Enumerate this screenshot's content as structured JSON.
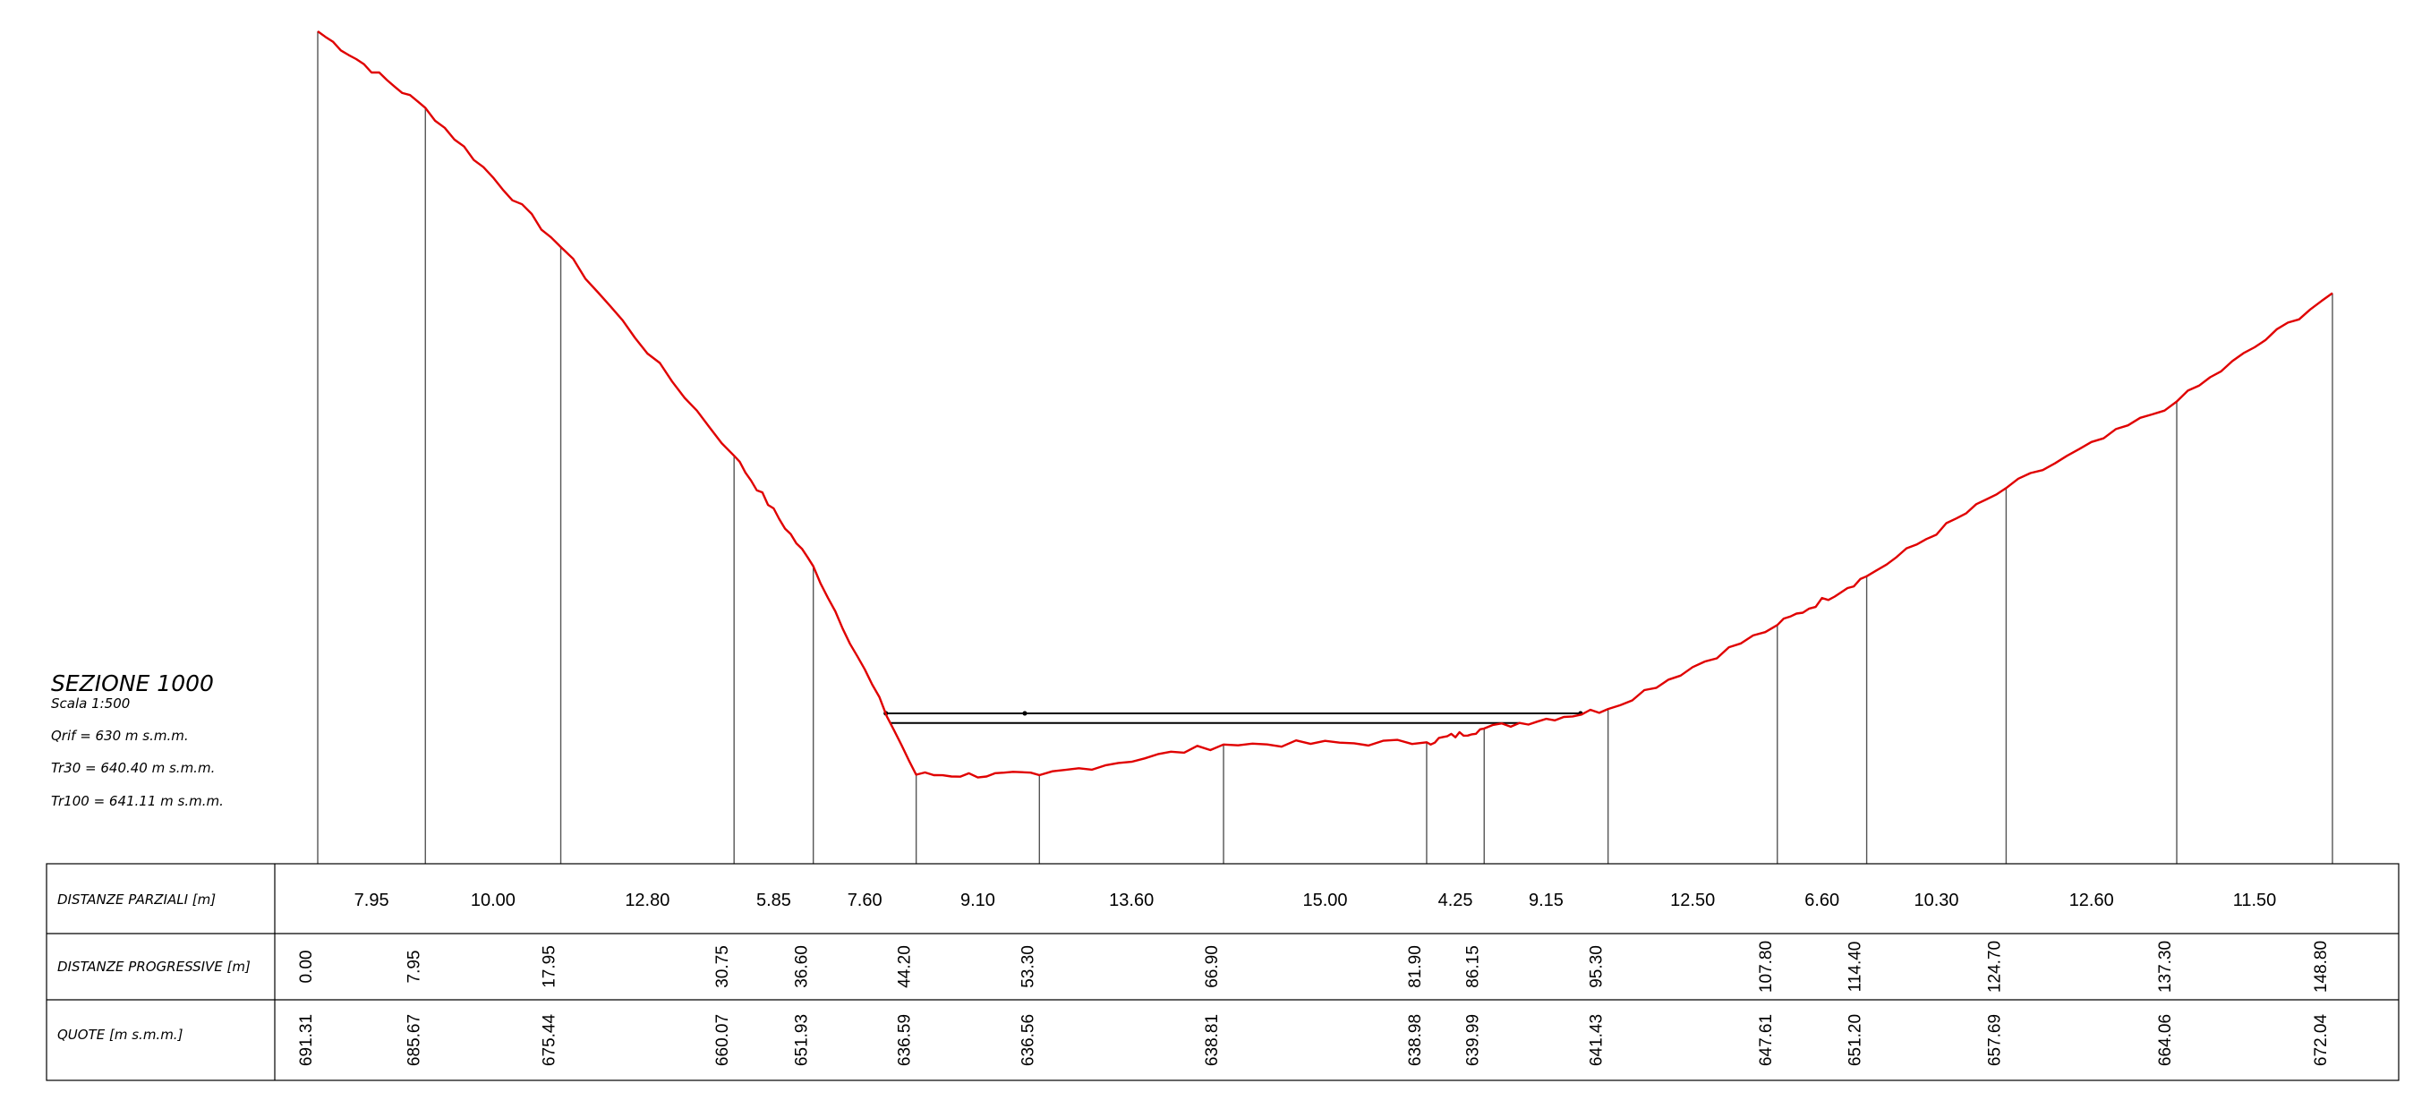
{
  "section": {
    "title": "SEZIONE 1000",
    "scale": "Scala 1:500",
    "qrif": "Qrif = 630 m s.m.m.",
    "tr30": "Tr30 = 640.40 m s.m.m.",
    "tr100": "Tr100 = 641.11 m s.m.m."
  },
  "table": {
    "row_labels": {
      "partial": "DISTANZE PARZIALI [m]",
      "progressive": "DISTANZE PROGRESSIVE [m]",
      "elevations": "QUOTE [m s.m.m.]"
    },
    "partial_distances": [
      "7.95",
      "10.00",
      "12.80",
      "5.85",
      "7.60",
      "9.10",
      "13.60",
      "15.00",
      "4.25",
      "9.15",
      "12.50",
      "6.60",
      "10.30",
      "12.60",
      "11.50"
    ],
    "progressive_distances": [
      "0.00",
      "7.95",
      "17.95",
      "30.75",
      "36.60",
      "44.20",
      "53.30",
      "66.90",
      "81.90",
      "86.15",
      "95.30",
      "107.80",
      "114.40",
      "124.70",
      "137.30",
      "148.80"
    ],
    "elevations": [
      "691.31",
      "685.67",
      "675.44",
      "660.07",
      "651.93",
      "636.59",
      "636.56",
      "638.81",
      "638.98",
      "639.99",
      "641.43",
      "647.61",
      "651.20",
      "657.69",
      "664.06",
      "672.04"
    ]
  },
  "chart_data": {
    "type": "line",
    "xlabel": "DISTANZE PROGRESSIVE [m]",
    "ylabel": "QUOTE [m s.m.m.]",
    "datum": 630,
    "x": [
      0.0,
      7.95,
      17.95,
      30.75,
      36.6,
      44.2,
      53.3,
      66.9,
      81.9,
      86.15,
      95.3,
      107.8,
      114.4,
      124.7,
      137.3,
      148.8
    ],
    "y": [
      691.31,
      685.67,
      675.44,
      660.07,
      651.93,
      636.59,
      636.56,
      638.81,
      638.98,
      639.99,
      641.43,
      647.61,
      651.2,
      657.69,
      664.06,
      672.04
    ],
    "water_levels": [
      640.4,
      641.11
    ],
    "profile_color": "#e00000"
  }
}
